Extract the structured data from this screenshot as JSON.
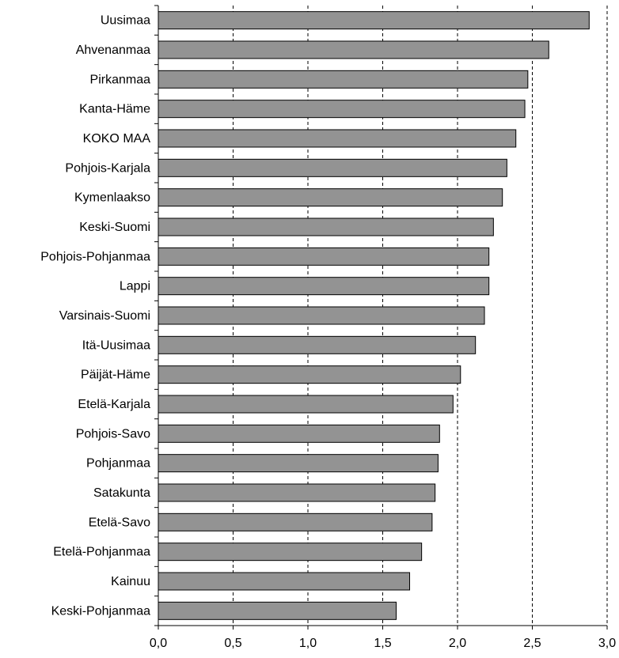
{
  "chart_data": {
    "type": "bar",
    "orientation": "horizontal",
    "categories": [
      "Uusimaa",
      "Ahvenanmaa",
      "Pirkanmaa",
      "Kanta-Häme",
      "KOKO MAA",
      "Pohjois-Karjala",
      "Kymenlaakso",
      "Keski-Suomi",
      "Pohjois-Pohjanmaa",
      "Lappi",
      "Varsinais-Suomi",
      "Itä-Uusimaa",
      "Päijät-Häme",
      "Etelä-Karjala",
      "Pohjois-Savo",
      "Pohjanmaa",
      "Satakunta",
      "Etelä-Savo",
      "Etelä-Pohjanmaa",
      "Kainuu",
      "Keski-Pohjanmaa"
    ],
    "values": [
      2.88,
      2.61,
      2.47,
      2.45,
      2.39,
      2.33,
      2.3,
      2.24,
      2.21,
      2.21,
      2.18,
      2.12,
      2.02,
      1.97,
      1.88,
      1.87,
      1.85,
      1.83,
      1.76,
      1.68,
      1.59
    ],
    "xlim": [
      0,
      3.0
    ],
    "x_ticks": [
      "0,0",
      "0,5",
      "1,0",
      "1,5",
      "2,0",
      "2,5",
      "3,0"
    ],
    "grid": "vertical dashed",
    "title": "",
    "xlabel": "",
    "ylabel": "",
    "colors": {
      "bar": "#939393",
      "bar_border": "#000000",
      "grid": "#000000"
    }
  }
}
